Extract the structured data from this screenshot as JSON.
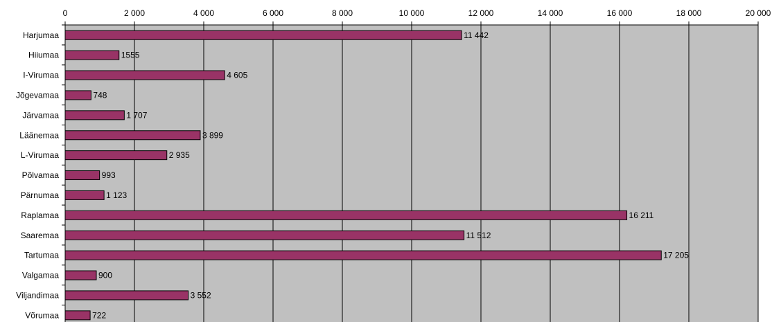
{
  "chart_data": {
    "type": "bar",
    "orientation": "horizontal",
    "categories": [
      "Harjumaa",
      "Hiiumaa",
      "I-Virumaa",
      "Jõgevamaa",
      "Järvamaa",
      "Läänemaa",
      "L-Virumaa",
      "Põlvamaa",
      "Pärnumaa",
      "Raplamaa",
      "Saaremaa",
      "Tartumaa",
      "Valgamaa",
      "Viljandimaa",
      "Võrumaa"
    ],
    "values": [
      11442,
      1555,
      4605,
      748,
      1707,
      3899,
      2935,
      993,
      1123,
      16211,
      11512,
      17205,
      900,
      3552,
      722
    ],
    "value_labels": [
      "11 442",
      "1555",
      "4 605",
      "748",
      "1 707",
      "3 899",
      "2 935",
      "993",
      "1 123",
      "16 211",
      "11 512",
      "17 205",
      "900",
      "3 552",
      "722"
    ],
    "xlim": [
      0,
      20000
    ],
    "x_ticks": [
      0,
      2000,
      4000,
      6000,
      8000,
      10000,
      12000,
      14000,
      16000,
      18000,
      20000
    ],
    "x_tick_labels": [
      "0",
      "2 000",
      "4 000",
      "6 000",
      "8 000",
      "10 000",
      "12 000",
      "14 000",
      "16 000",
      "18 000",
      "20 000"
    ],
    "x_axis_position": "top",
    "grid": true,
    "legend": "none",
    "title": "",
    "xlabel": "",
    "ylabel": "",
    "colors": {
      "bar_fill": "#993366",
      "bar_stroke": "#000000",
      "plot_background": "#c0c0c0",
      "grid": "#000000"
    }
  }
}
